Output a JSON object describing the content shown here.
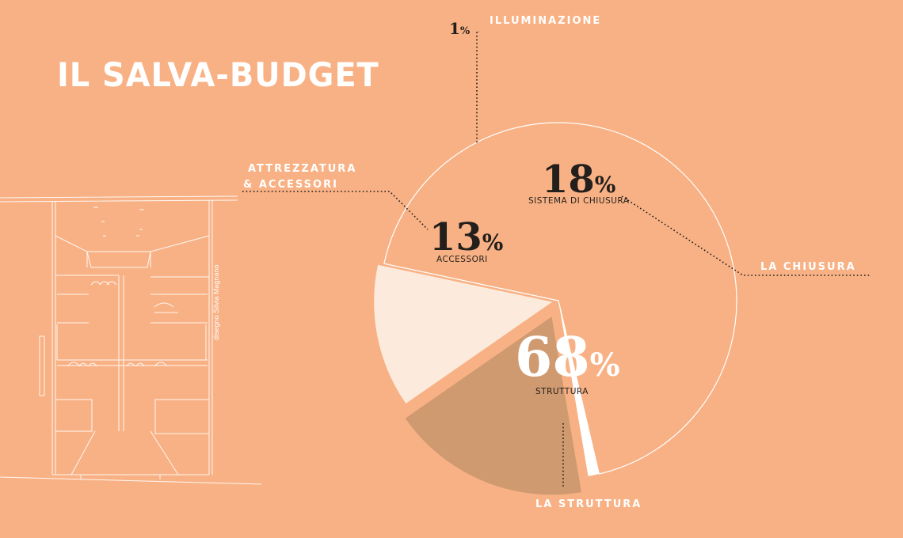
{
  "page": {
    "title": "IL SALVA-BUDGET",
    "credit": "disegno Silvia Magnano"
  },
  "colors": {
    "background": "#F8B184",
    "white": "#FFFFFF",
    "slice_struttura": "#F8B184",
    "slice_chiusura": "#CF9A70",
    "slice_accessori": "#FCEBDD",
    "slice_illuminazione": "#FFFFFF",
    "dark_text": "#231F1C"
  },
  "chart_data": {
    "type": "pie",
    "slices": [
      {
        "key": "struttura",
        "value": 68,
        "label": "68",
        "sublabel": "STRUTTURA",
        "callout": "LA STRUTTURA"
      },
      {
        "key": "illuminazione",
        "value": 1,
        "label": "1",
        "sublabel": "",
        "callout": "ILLUMINAZIONE"
      },
      {
        "key": "chiusura",
        "value": 18,
        "label": "18",
        "sublabel": "SISTEMA DI CHIUSURA",
        "callout": "LA CHIUSURA"
      },
      {
        "key": "accessori",
        "value": 13,
        "label": "13",
        "sublabel": "ACCESSORI",
        "callout_lines": [
          "ATTREZZATURA",
          "& ACCESSORI"
        ]
      }
    ],
    "unit": "%",
    "exploded": [
      "chiusura",
      "accessori"
    ]
  }
}
